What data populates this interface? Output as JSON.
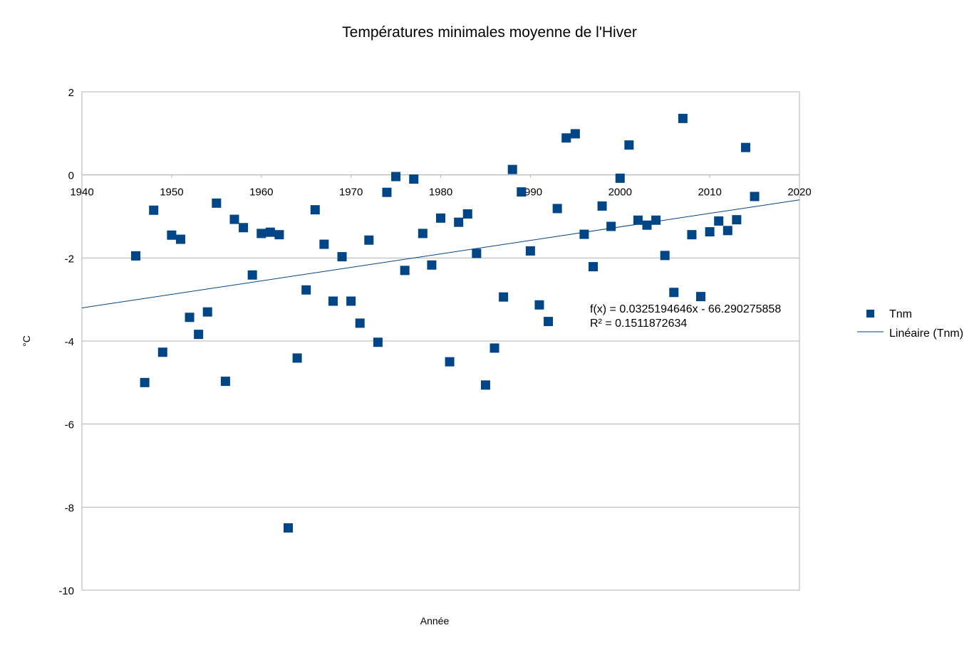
{
  "chart_data": {
    "type": "scatter",
    "title": "Températures minimales moyenne de l'Hiver",
    "xlabel": "Année",
    "ylabel": "°C",
    "xlim": [
      1940,
      2020
    ],
    "ylim": [
      -10,
      2
    ],
    "x_ticks": [
      "1940",
      "1950",
      "1960",
      "1970",
      "1980",
      "1990",
      "2000",
      "2010",
      "2020"
    ],
    "y_ticks": [
      "2",
      "0",
      "-2",
      "-4",
      "-6",
      "-8",
      "-10"
    ],
    "grid": "horizontal",
    "legend_position": "right",
    "series": [
      {
        "name": "Tnm",
        "color": "#004586",
        "marker": "square",
        "points": [
          [
            1946,
            -1.95
          ],
          [
            1947,
            -5.0
          ],
          [
            1948,
            -0.85
          ],
          [
            1949,
            -4.27
          ],
          [
            1950,
            -1.45
          ],
          [
            1951,
            -1.55
          ],
          [
            1952,
            -3.43
          ],
          [
            1953,
            -3.84
          ],
          [
            1954,
            -3.3
          ],
          [
            1955,
            -0.68
          ],
          [
            1956,
            -4.97
          ],
          [
            1957,
            -1.07
          ],
          [
            1958,
            -1.27
          ],
          [
            1959,
            -2.41
          ],
          [
            1960,
            -1.41
          ],
          [
            1961,
            -1.38
          ],
          [
            1962,
            -1.44
          ],
          [
            1963,
            -8.5
          ],
          [
            1964,
            -4.41
          ],
          [
            1965,
            -2.77
          ],
          [
            1966,
            -0.84
          ],
          [
            1967,
            -1.67
          ],
          [
            1968,
            -3.04
          ],
          [
            1969,
            -1.97
          ],
          [
            1970,
            -3.04
          ],
          [
            1971,
            -3.57
          ],
          [
            1972,
            -1.57
          ],
          [
            1973,
            -4.03
          ],
          [
            1974,
            -0.42
          ],
          [
            1975,
            -0.04
          ],
          [
            1976,
            -2.3
          ],
          [
            1977,
            -0.1
          ],
          [
            1978,
            -1.41
          ],
          [
            1979,
            -2.17
          ],
          [
            1980,
            -1.04
          ],
          [
            1981,
            -4.5
          ],
          [
            1982,
            -1.14
          ],
          [
            1983,
            -0.94
          ],
          [
            1984,
            -1.89
          ],
          [
            1985,
            -5.06
          ],
          [
            1986,
            -4.17
          ],
          [
            1987,
            -2.94
          ],
          [
            1988,
            0.13
          ],
          [
            1989,
            -0.41
          ],
          [
            1990,
            -1.83
          ],
          [
            1991,
            -3.13
          ],
          [
            1992,
            -3.53
          ],
          [
            1993,
            -0.81
          ],
          [
            1994,
            0.89
          ],
          [
            1995,
            0.99
          ],
          [
            1996,
            -1.43
          ],
          [
            1997,
            -2.21
          ],
          [
            1998,
            -0.75
          ],
          [
            1999,
            -1.24
          ],
          [
            2000,
            -0.08
          ],
          [
            2001,
            0.72
          ],
          [
            2002,
            -1.09
          ],
          [
            2003,
            -1.21
          ],
          [
            2004,
            -1.09
          ],
          [
            2005,
            -1.94
          ],
          [
            2006,
            -2.83
          ],
          [
            2007,
            1.36
          ],
          [
            2008,
            -1.44
          ],
          [
            2009,
            -2.93
          ],
          [
            2010,
            -1.37
          ],
          [
            2011,
            -1.11
          ],
          [
            2012,
            -1.34
          ],
          [
            2013,
            -1.08
          ],
          [
            2014,
            0.66
          ],
          [
            2015,
            -0.52
          ]
        ]
      }
    ],
    "trendline": {
      "name": "Linéaire (Tnm)",
      "type": "linear",
      "color": "#004586",
      "slope": 0.0325194646,
      "intercept": -66.290275858,
      "equation": "f(x) = 0.0325194646x - 66.290275858",
      "r_squared": "R² = 0.1511872634"
    }
  }
}
